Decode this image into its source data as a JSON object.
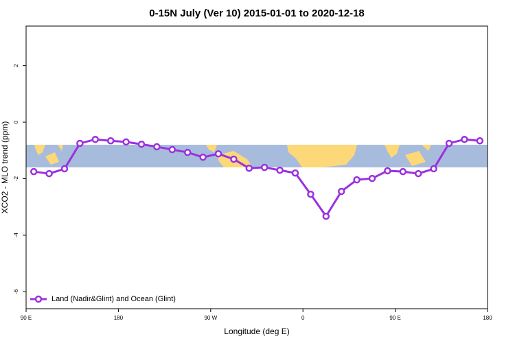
{
  "chart_data": {
    "type": "line",
    "title": "0-15N July (Ver 10)   2015-01-01 to 2020-12-18",
    "xlabel": "Longitude (deg E)",
    "ylabel": "XCO2 - MLO trend (ppm)",
    "xlim": [
      90,
      540
    ],
    "ylim": [
      -6.6,
      3.4
    ],
    "xticks": [
      {
        "value": 90,
        "label": "90 E"
      },
      180,
      {
        "value": 270,
        "label": "90 W"
      },
      {
        "value": 360,
        "label": "0"
      },
      {
        "value": 450,
        "label": "90 E"
      },
      {
        "value": 540,
        "label": "180"
      }
    ],
    "yticks": [
      -6,
      -4,
      -2,
      0,
      2
    ],
    "legend": "bottom-left",
    "series": [
      {
        "name": "Land (Nadir&Glint) and Ocean (Glint)",
        "color": "#9b30e0",
        "x": [
          97.5,
          112.5,
          127.5,
          142.5,
          157.5,
          172.5,
          187.5,
          202.5,
          217.5,
          232.5,
          247.5,
          262.5,
          277.5,
          292.5,
          307.5,
          322.5,
          337.5,
          352.5,
          367.5,
          382.5,
          397.5,
          412.5,
          427.5,
          442.5,
          457.5,
          472.5,
          487.5,
          502.5,
          517.5,
          532.5
        ],
        "values": [
          -1.75,
          -1.82,
          -1.65,
          -0.75,
          -0.61,
          -0.66,
          -0.7,
          -0.78,
          -0.87,
          -0.97,
          -1.07,
          -1.24,
          -1.12,
          -1.31,
          -1.63,
          -1.6,
          -1.7,
          -1.8,
          -2.55,
          -3.33,
          -2.45,
          -2.04,
          -1.99,
          -1.72,
          -1.75,
          -1.82,
          -1.65,
          -0.75,
          -0.61,
          -0.66
        ]
      }
    ]
  }
}
